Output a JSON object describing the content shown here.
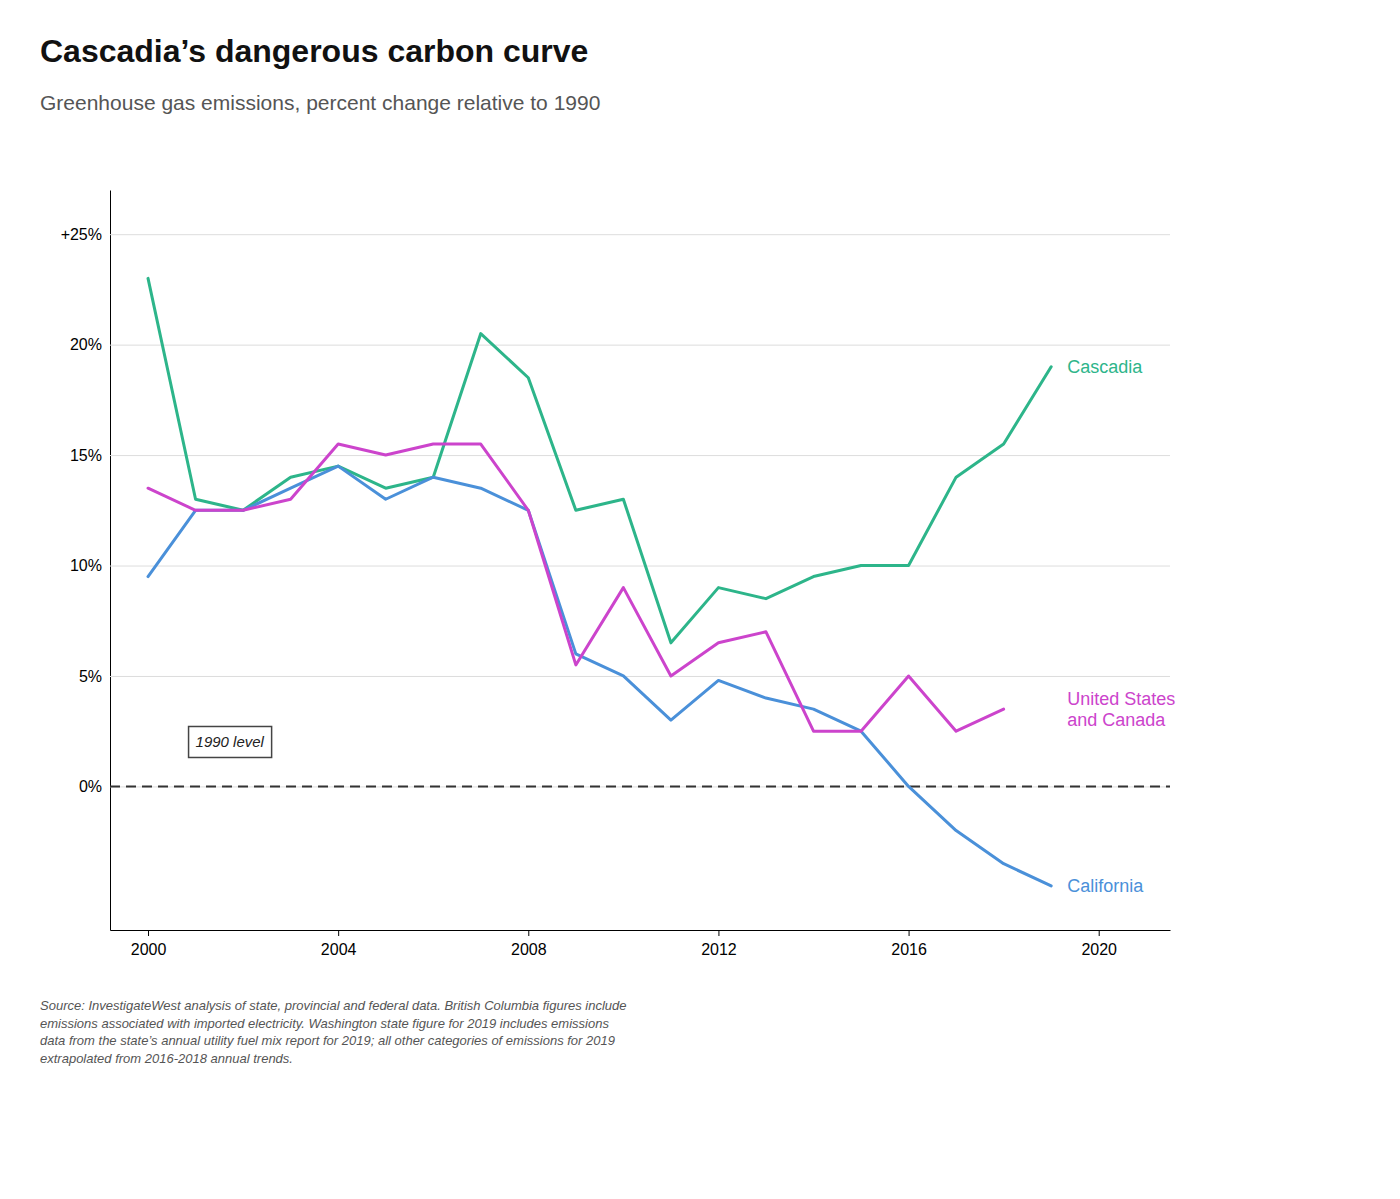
{
  "chart_data": {
    "type": "line",
    "title": "Cascadia’s dangerous carbon curve",
    "subtitle": "Greenhouse gas emissions, percent change relative to 1990",
    "source": "Source: InvestigateWest analysis of state, provincial and federal data. British Columbia figures include\nemissions associated with imported electricity. Washington state figure for 2019 includes emissions\ndata from the state’s annual utility fuel mix report for 2019; all other categories of emissions for 2019\nextrapolated from 2016-2018 annual trends.",
    "x": [
      2000,
      2001,
      2002,
      2003,
      2004,
      2005,
      2006,
      2007,
      2008,
      2009,
      2010,
      2011,
      2012,
      2013,
      2014,
      2015,
      2016,
      2017,
      2018,
      2019
    ],
    "series": [
      {
        "name": "Cascadia",
        "color": "#2db58a",
        "values": [
          23.0,
          13.0,
          12.5,
          14.0,
          14.5,
          13.5,
          14.0,
          20.5,
          18.5,
          12.5,
          13.0,
          6.5,
          9.0,
          8.5,
          9.5,
          10.0,
          10.0,
          14.0,
          15.5,
          19.0
        ]
      },
      {
        "name": "California",
        "color": "#4a90d9",
        "values": [
          9.5,
          12.5,
          12.5,
          13.5,
          14.5,
          13.0,
          14.0,
          13.5,
          12.5,
          6.0,
          5.0,
          3.0,
          4.8,
          4.0,
          3.5,
          2.5,
          0.0,
          -2.0,
          -3.5,
          -4.5
        ]
      },
      {
        "name": "United States\nand Canada",
        "color": "#cc44cc",
        "values": [
          13.5,
          12.5,
          12.5,
          13.0,
          15.5,
          15.0,
          15.5,
          15.5,
          12.5,
          5.5,
          9.0,
          5.0,
          6.5,
          7.0,
          2.5,
          2.5,
          5.0,
          2.5,
          3.5,
          null
        ]
      }
    ],
    "annotations": [
      {
        "text": "1990 level",
        "x": 2001.0,
        "y": 2.0
      }
    ],
    "reference_lines": [
      {
        "y": 0,
        "line_style": "dashed"
      }
    ],
    "xlim": [
      1999.2,
      2021.5
    ],
    "xticks": [
      2000,
      2004,
      2008,
      2012,
      2016,
      2020
    ],
    "ylim": [
      -6.5,
      27
    ],
    "yticks": [
      {
        "value": 0,
        "label": "0%"
      },
      {
        "value": 5,
        "label": "5%"
      },
      {
        "value": 10,
        "label": "10%"
      },
      {
        "value": 15,
        "label": "15%"
      },
      {
        "value": 20,
        "label": "20%"
      },
      {
        "value": 25,
        "label": "+25%"
      }
    ],
    "grid": true
  }
}
